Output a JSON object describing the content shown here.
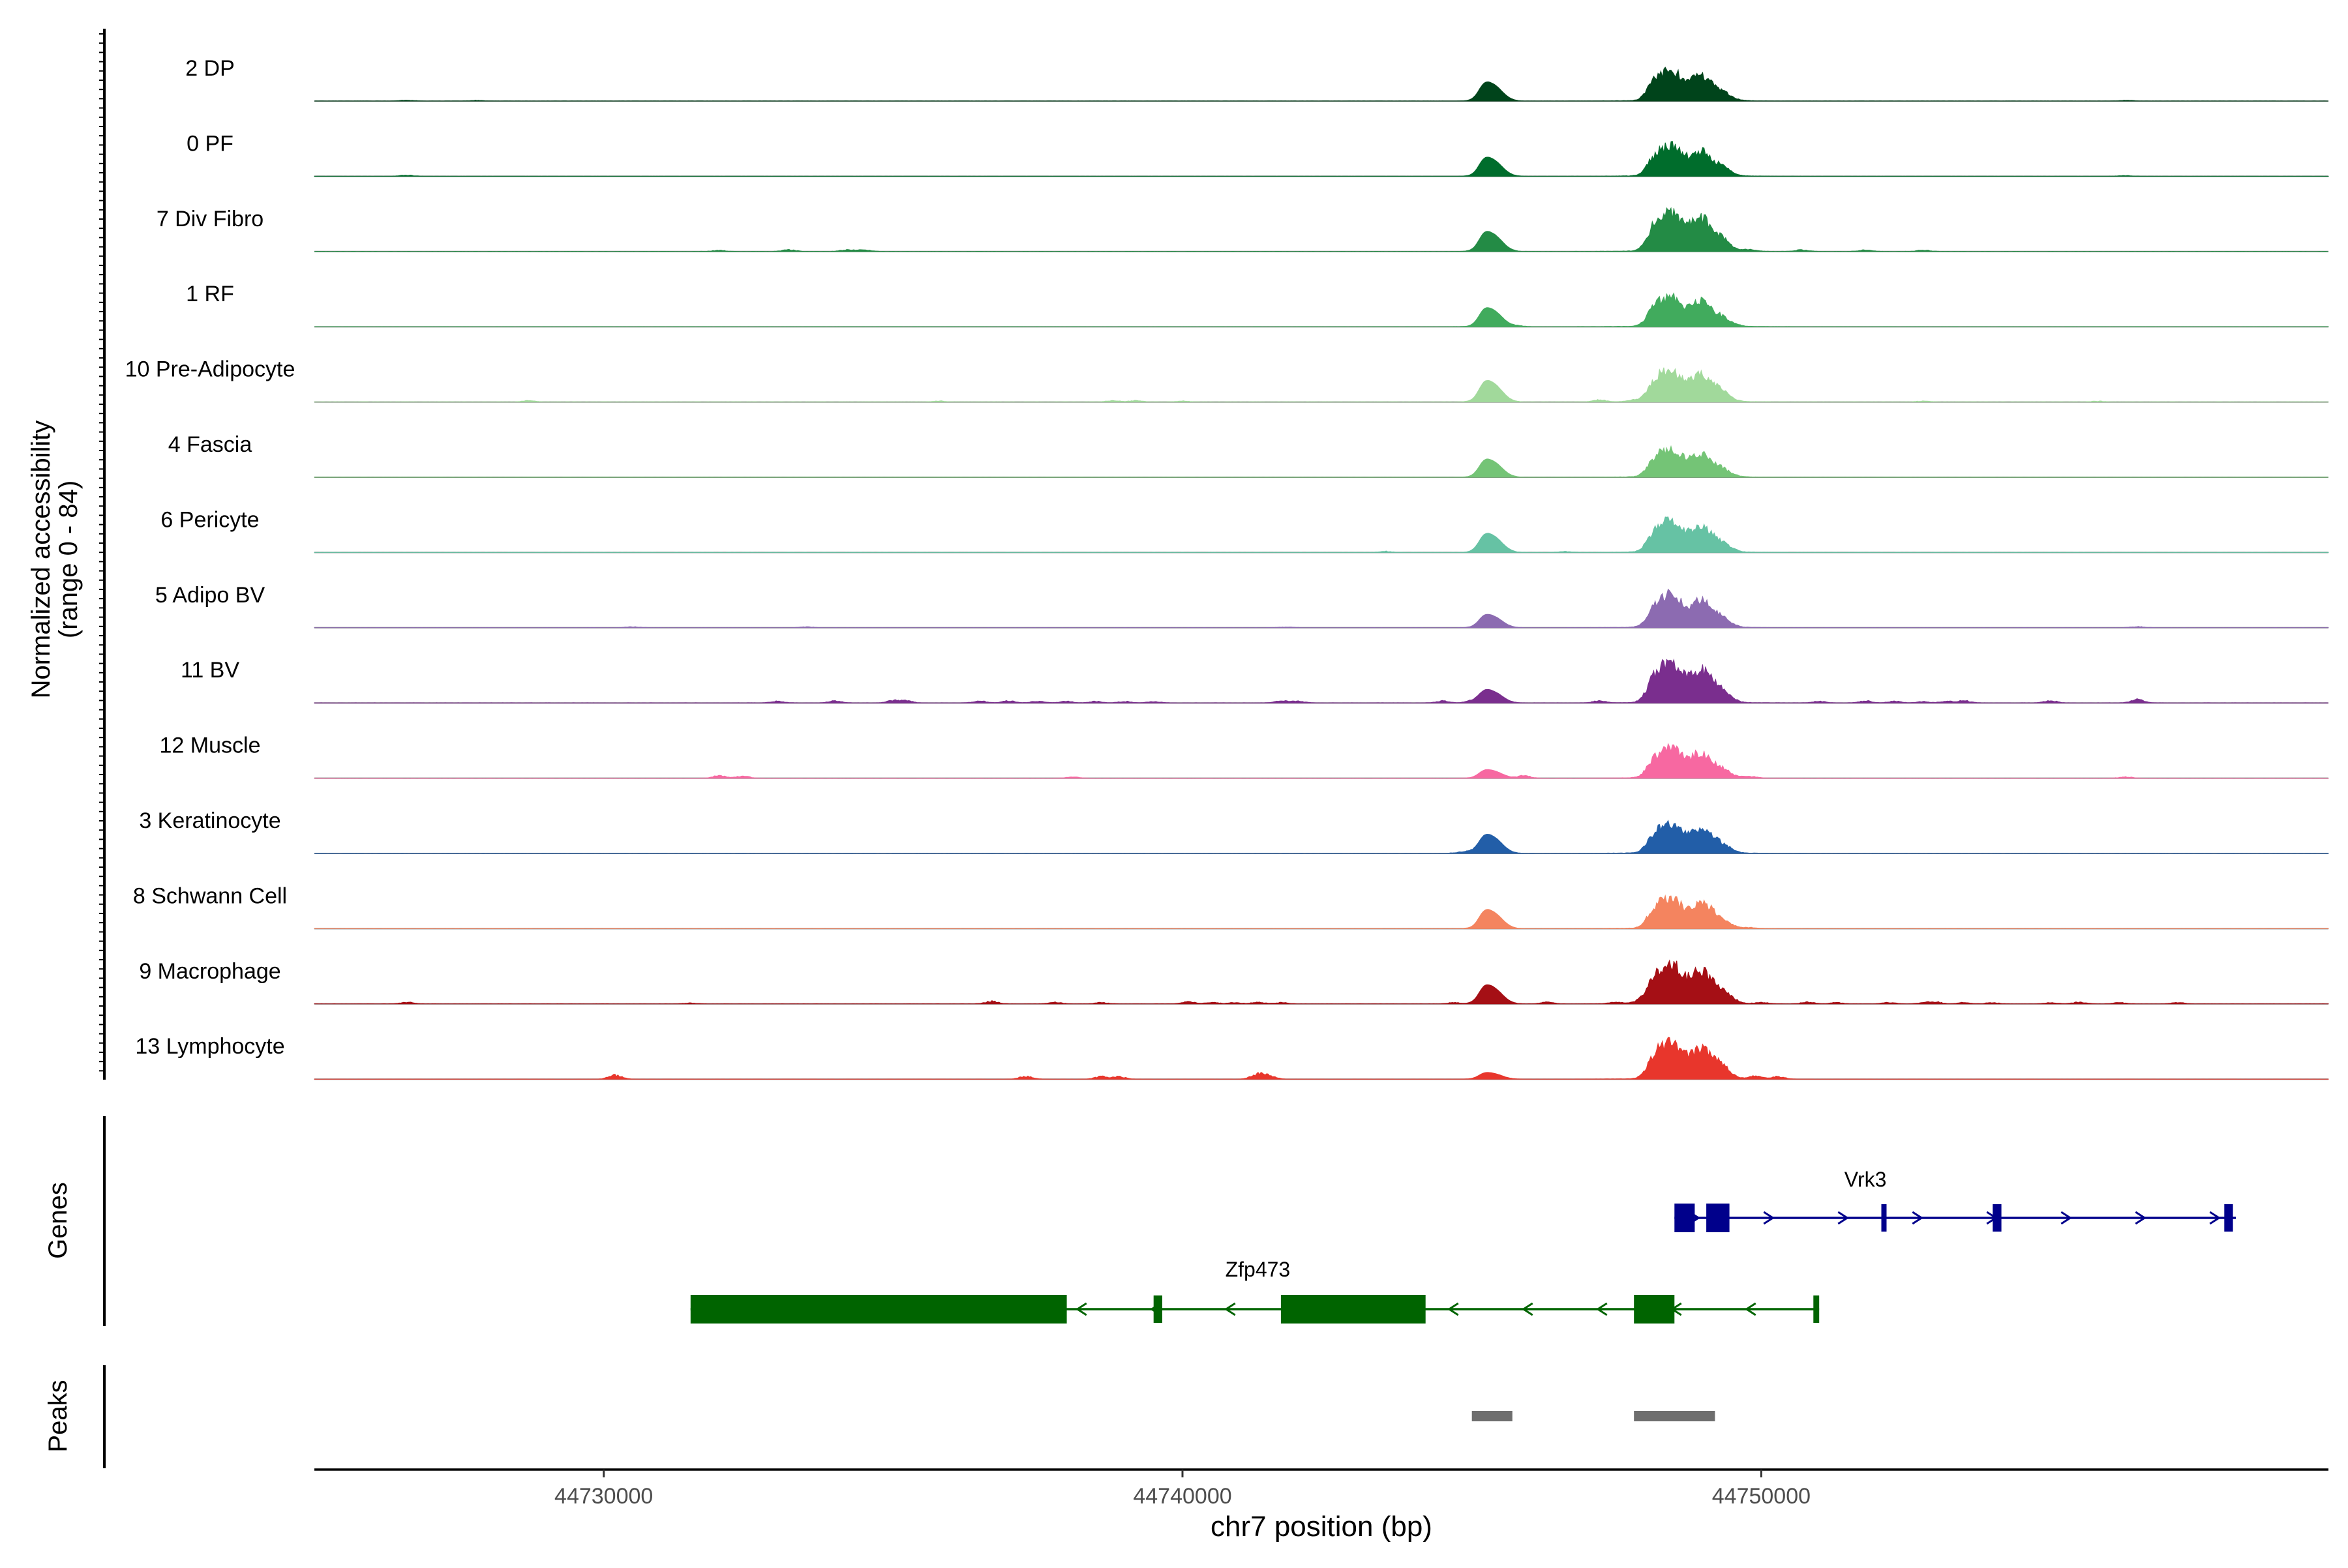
{
  "chart_data": {
    "type": "area",
    "title": "",
    "ylabel_line1": "Normalized accessibility",
    "ylabel_line2": "(range 0 - 84)",
    "ylim": [
      0,
      84
    ],
    "xlabel": "chr7 position (bp)",
    "xlim": [
      44725000,
      44759800
    ],
    "x_ticks": [
      44730000,
      44740000,
      44750000
    ],
    "x_tick_labels": [
      "44730000",
      "44740000",
      "44750000"
    ],
    "series": [
      {
        "name": "2 DP",
        "color": "#00441b",
        "peak1": 40,
        "peak2": 68,
        "noise": 0.35,
        "extra": [
          [
            44726600,
            2
          ],
          [
            44727800,
            1.5
          ],
          [
            44756300,
            1.5
          ]
        ]
      },
      {
        "name": "0 PF",
        "color": "#006d2c",
        "peak1": 40,
        "peak2": 68,
        "noise": 0.35,
        "extra": [
          [
            44726600,
            2.5
          ],
          [
            44756300,
            1.5
          ]
        ]
      },
      {
        "name": "7 Div Fibro",
        "color": "#238b45",
        "peak1": 42,
        "peak2": 92,
        "noise": 0.5,
        "extra": [
          [
            44732000,
            2.5
          ],
          [
            44733200,
            4
          ],
          [
            44734200,
            4
          ],
          [
            44734500,
            4
          ],
          [
            44749800,
            3.5
          ],
          [
            44750700,
            4
          ],
          [
            44751800,
            3.5
          ],
          [
            44752800,
            3
          ]
        ]
      },
      {
        "name": "1 RF",
        "color": "#41ab5d",
        "peak1": 40,
        "peak2": 68,
        "noise": 0.35,
        "extra": [
          [
            44745800,
            2
          ],
          [
            44749500,
            2
          ]
        ]
      },
      {
        "name": "10 Pre-Adipocyte",
        "color": "#a1d99b",
        "peak1": 45,
        "peak2": 72,
        "noise": 0.5,
        "extra": [
          [
            44728700,
            3
          ],
          [
            44735800,
            2
          ],
          [
            44738800,
            3.5
          ],
          [
            44739200,
            3
          ],
          [
            44740000,
            2
          ],
          [
            44747200,
            4.5
          ],
          [
            44747800,
            4
          ],
          [
            44749200,
            3.5
          ],
          [
            44752800,
            2
          ],
          [
            44755800,
            2
          ]
        ]
      },
      {
        "name": "4 Fascia",
        "color": "#74c476",
        "peak1": 38,
        "peak2": 62,
        "noise": 0.4,
        "extra": []
      },
      {
        "name": "6 Pericyte",
        "color": "#66c2a4",
        "peak1": 40,
        "peak2": 72,
        "noise": 0.55,
        "extra": [
          [
            44743500,
            2.5
          ],
          [
            44746600,
            2
          ]
        ]
      },
      {
        "name": "5 Adipo BV",
        "color": "#8c6bb1",
        "peak1": 28,
        "peak2": 75,
        "noise": 0.45,
        "extra": [
          [
            44730500,
            2
          ],
          [
            44733500,
            2
          ],
          [
            44741800,
            1.5
          ],
          [
            44756500,
            2.5
          ]
        ]
      },
      {
        "name": "11 BV",
        "color": "#7a2e8e",
        "peak1": 28,
        "peak2": 92,
        "noise": 0.4,
        "extra": [
          [
            44733000,
            4
          ],
          [
            44734000,
            5
          ],
          [
            44735000,
            5
          ],
          [
            44735200,
            6
          ],
          [
            44736500,
            5
          ],
          [
            44737000,
            5
          ],
          [
            44737500,
            4.5
          ],
          [
            44738000,
            4
          ],
          [
            44738500,
            3.5
          ],
          [
            44739000,
            3.5
          ],
          [
            44739500,
            3.5
          ],
          [
            44741700,
            5
          ],
          [
            44742000,
            4
          ],
          [
            44744500,
            5
          ],
          [
            44745000,
            4
          ],
          [
            44747200,
            5
          ],
          [
            44751000,
            4
          ],
          [
            44751800,
            5
          ],
          [
            44752300,
            4
          ],
          [
            44752800,
            3
          ],
          [
            44753200,
            3.5
          ],
          [
            44753500,
            6
          ],
          [
            44755000,
            5
          ],
          [
            44756500,
            8
          ]
        ]
      },
      {
        "name": "12 Muscle",
        "color": "#f768a1",
        "peak1": 18,
        "peak2": 68,
        "noise": 0.25,
        "extra": [
          [
            44732000,
            6
          ],
          [
            44732400,
            5
          ],
          [
            44738100,
            3
          ],
          [
            44745900,
            6
          ],
          [
            44749800,
            4
          ],
          [
            44756300,
            3
          ]
        ]
      },
      {
        "name": "3 Keratinocyte",
        "color": "#225ea8",
        "peak1": 40,
        "peak2": 68,
        "noise": 0.55,
        "extra": [
          [
            44744800,
            2.5
          ],
          [
            44745000,
            3
          ]
        ]
      },
      {
        "name": "8 Schwann Cell",
        "color": "#f4845f",
        "peak1": 40,
        "peak2": 68,
        "noise": 0.4,
        "extra": [
          [
            44749100,
            4
          ],
          [
            44749800,
            2
          ]
        ]
      },
      {
        "name": "9 Macrophage",
        "color": "#a50f15",
        "peak1": 40,
        "peak2": 92,
        "noise": 0.4,
        "extra": [
          [
            44726600,
            4
          ],
          [
            44731500,
            2
          ],
          [
            44736700,
            6
          ],
          [
            44737800,
            4
          ],
          [
            44738600,
            3
          ],
          [
            44740100,
            5
          ],
          [
            44740500,
            4
          ],
          [
            44740900,
            3
          ],
          [
            44741300,
            4
          ],
          [
            44741700,
            3
          ],
          [
            44744700,
            3
          ],
          [
            44746300,
            4
          ],
          [
            44747500,
            4
          ],
          [
            44747900,
            5
          ],
          [
            44749500,
            3
          ],
          [
            44750000,
            3
          ],
          [
            44750800,
            4
          ],
          [
            44751300,
            3
          ],
          [
            44752200,
            3
          ],
          [
            44752800,
            2
          ],
          [
            44753000,
            5
          ],
          [
            44753500,
            3
          ],
          [
            44754000,
            3
          ],
          [
            44755000,
            3
          ],
          [
            44755500,
            4
          ],
          [
            44756200,
            3
          ],
          [
            44757200,
            3
          ]
        ]
      },
      {
        "name": "13 Lymphocyte",
        "color": "#e8362c",
        "peak1": 14,
        "peak2": 84,
        "noise": 0.2,
        "extra": [
          [
            44730200,
            10
          ],
          [
            44737300,
            7
          ],
          [
            44738600,
            6
          ],
          [
            44738900,
            6
          ],
          [
            44741300,
            12
          ],
          [
            44741500,
            8
          ],
          [
            44749300,
            6
          ],
          [
            44749900,
            8
          ],
          [
            44750300,
            6
          ]
        ]
      }
    ],
    "gene_track_label": "Genes",
    "peak_track_label": "Peaks",
    "genes": [
      {
        "name": "Vrk3",
        "strand": "+",
        "color": "#00008b",
        "start": 44748500,
        "end": 44758200,
        "exons": [
          [
            44748500,
            44748850
          ],
          [
            44749050,
            44749450
          ],
          [
            44752100,
            44752140
          ],
          [
            44754000,
            44754150
          ],
          [
            44758000,
            44758150
          ]
        ]
      },
      {
        "name": "Zfp473",
        "strand": "-",
        "color": "#006400",
        "start": 44731500,
        "end": 44751000,
        "exons": [
          [
            44731500,
            44738000
          ],
          [
            44739500,
            44739650
          ],
          [
            44741700,
            44744200
          ],
          [
            44747800,
            44748500
          ],
          [
            44750900,
            44751000
          ]
        ]
      }
    ],
    "peaks": [
      [
        44745000,
        44745700
      ],
      [
        44747800,
        44749200
      ]
    ]
  }
}
